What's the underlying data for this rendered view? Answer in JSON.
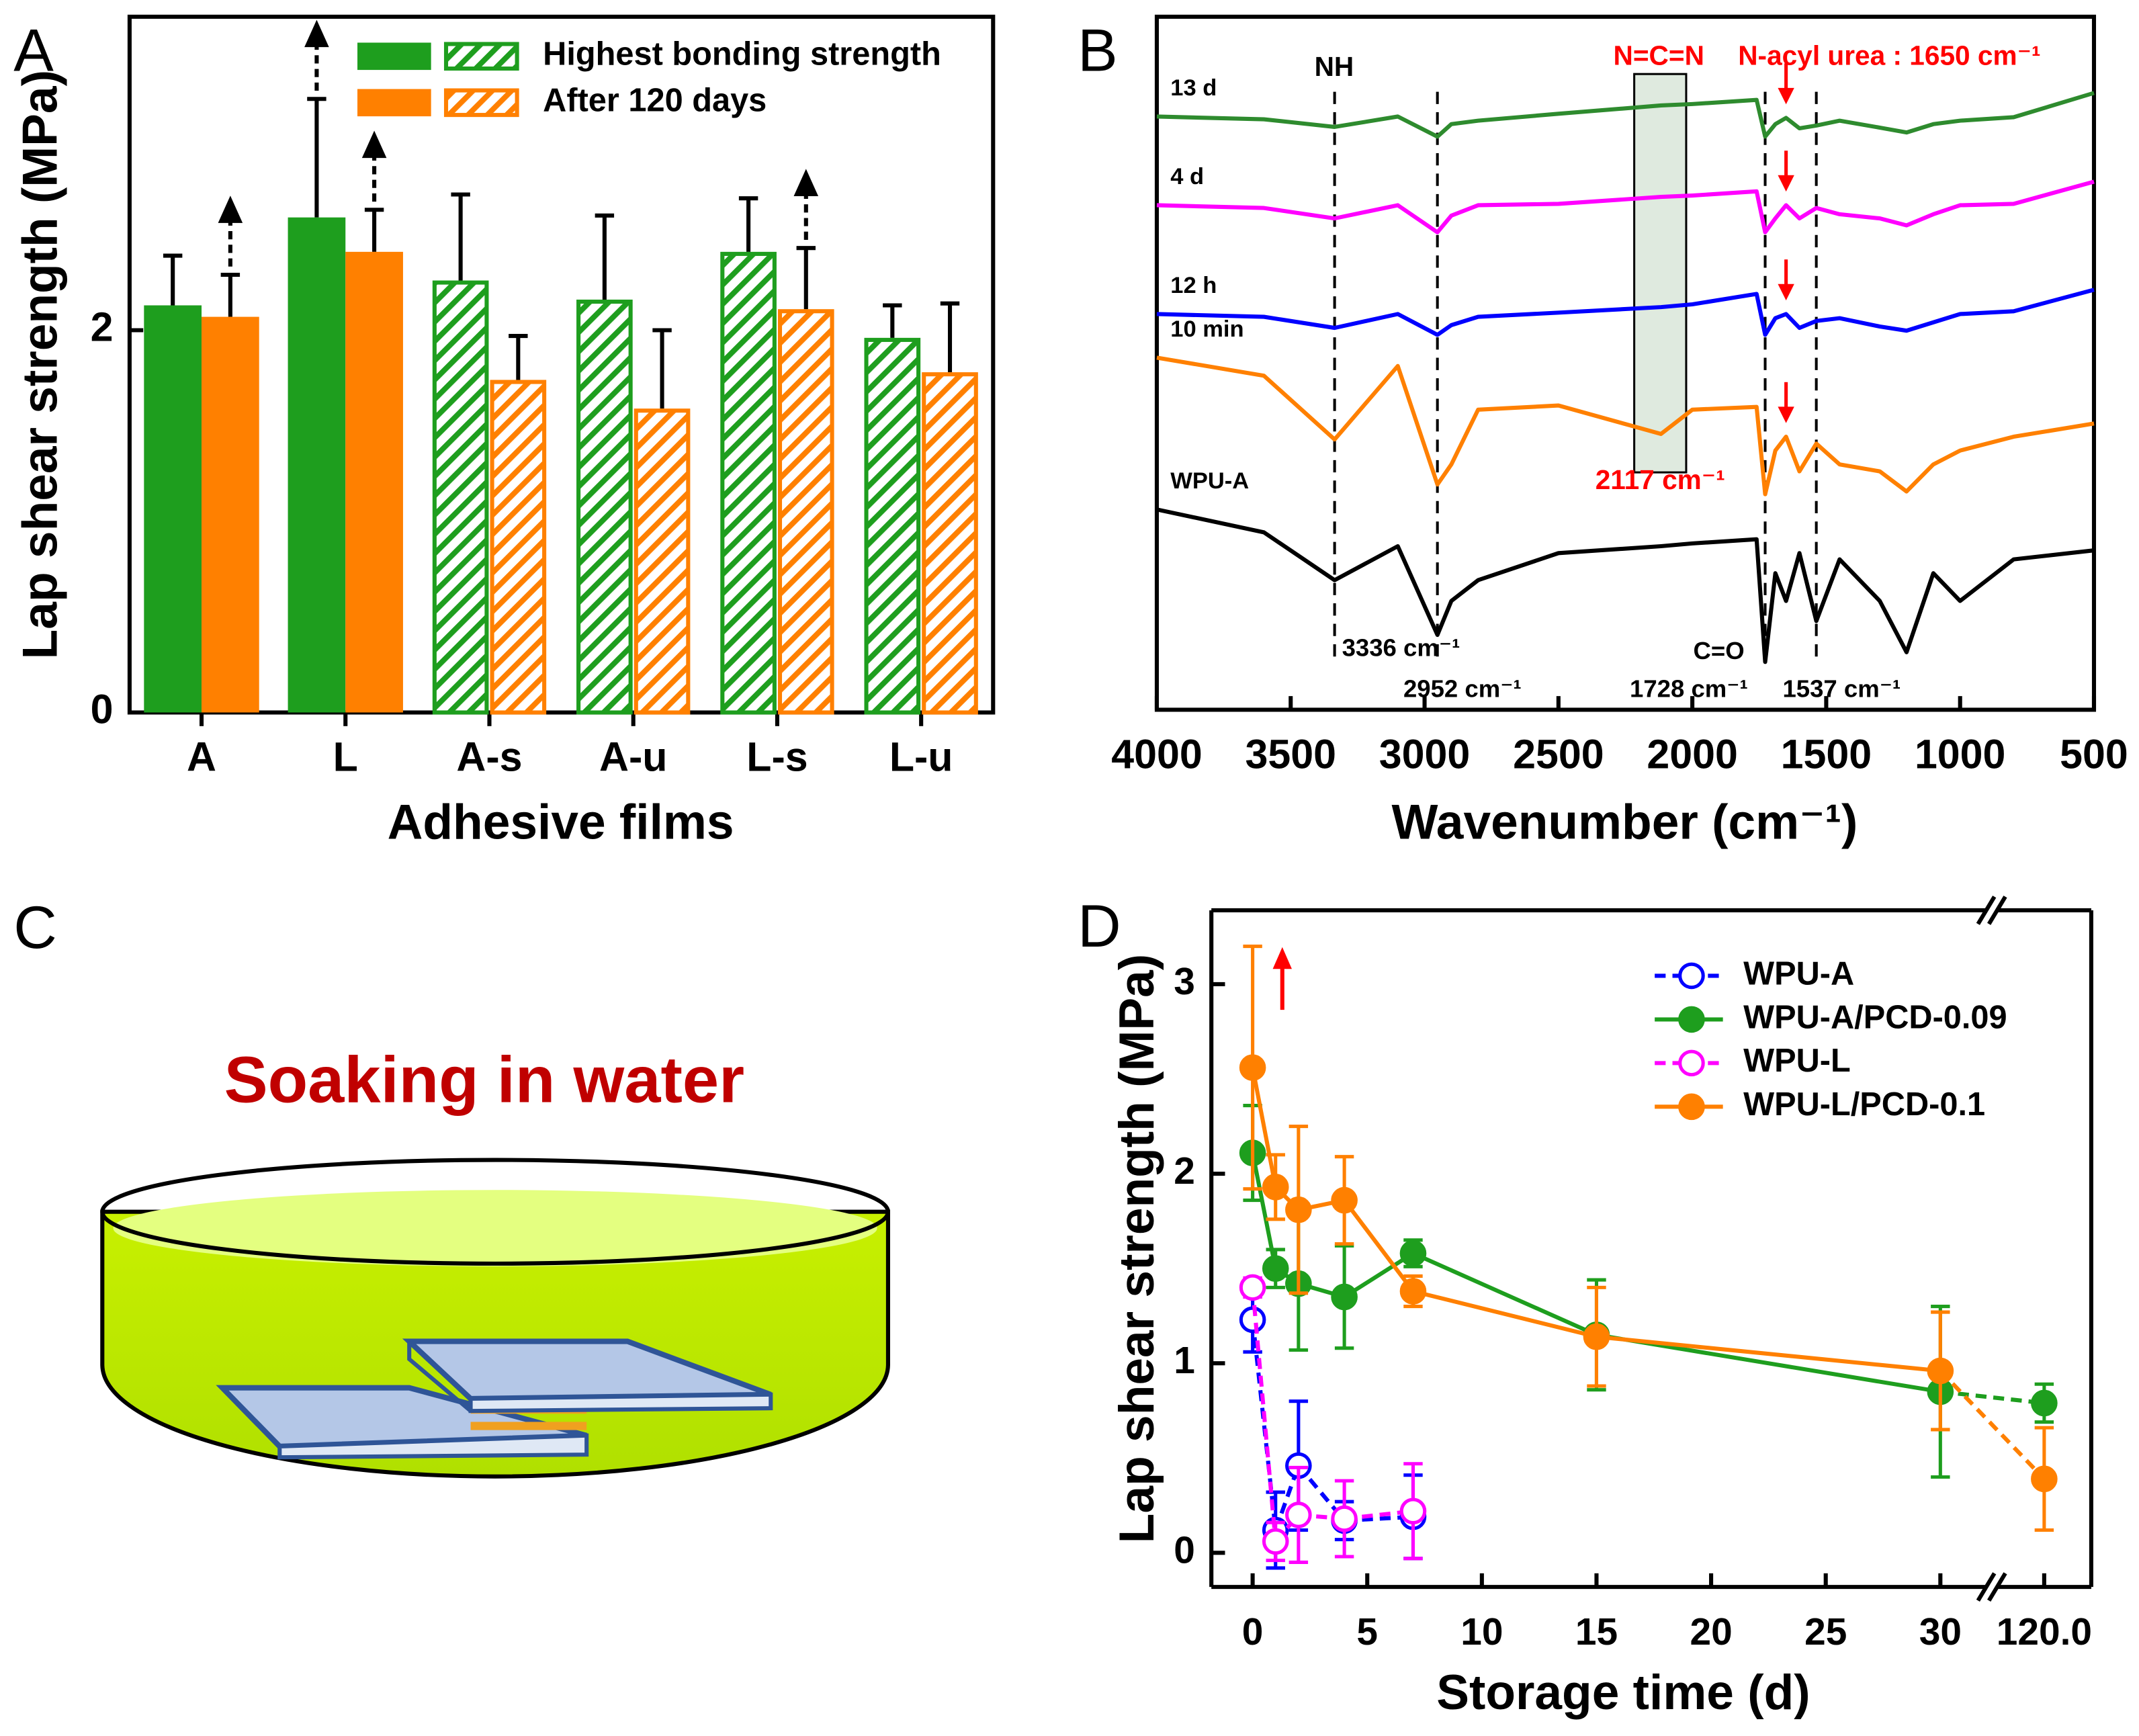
{
  "chart_data": [
    {
      "type": "bar",
      "panel": "A",
      "ylabel": "Lap shear strength (MPa)",
      "xlabel": "Adhesive films",
      "categories": [
        "A",
        "L",
        "A-s",
        "A-u",
        "L-s",
        "L-u"
      ],
      "hatched": [
        false,
        false,
        true,
        true,
        true,
        true
      ],
      "series": [
        {
          "name": "Highest bonding strength",
          "color": "#1e9e1e",
          "values": [
            2.13,
            2.59,
            2.26,
            2.16,
            2.41,
            1.96
          ],
          "errors": [
            0.26,
            0.62,
            0.45,
            0.44,
            0.28,
            0.17
          ],
          "arrows": [
            false,
            true,
            false,
            false,
            false,
            false
          ]
        },
        {
          "name": "After 120 days",
          "color": "#ff8000",
          "values": [
            2.07,
            2.41,
            1.74,
            1.59,
            2.11,
            1.78
          ],
          "errors": [
            0.22,
            0.22,
            0.23,
            0.41,
            0.32,
            0.36
          ],
          "arrows": [
            true,
            true,
            false,
            false,
            true,
            false
          ]
        }
      ],
      "ylim": [
        0,
        3.64
      ],
      "yticks": [
        0,
        2
      ],
      "legend": "upper right"
    },
    {
      "type": "line",
      "panel": "B",
      "xlabel": "Wavenumber (cm⁻¹)",
      "x": [
        4000,
        3600,
        3336,
        3100,
        2952,
        2900,
        2800,
        2500,
        2117,
        2000,
        1760,
        1728,
        1690,
        1650,
        1600,
        1537,
        1450,
        1300,
        1200,
        1100,
        1000,
        800,
        500
      ],
      "series": [
        {
          "name": "13 d",
          "color": "#2e8b2e",
          "arrow": true,
          "values": [
            85.6,
            85.2,
            84.1,
            85.6,
            82.7,
            84.5,
            85.0,
            86.0,
            87.2,
            87.4,
            88.0,
            82.7,
            84.5,
            85.4,
            83.9,
            84.3,
            85.0,
            84.0,
            83.3,
            84.5,
            85.0,
            85.5,
            89.0
          ]
        },
        {
          "name": "4 d",
          "color": "#ff00ff",
          "arrow": true,
          "values": [
            72.8,
            72.4,
            70.9,
            72.8,
            68.9,
            71.3,
            72.8,
            73.0,
            74.0,
            74.2,
            74.8,
            68.9,
            70.9,
            72.8,
            70.9,
            72.4,
            71.5,
            70.9,
            69.9,
            71.5,
            72.8,
            73.0,
            76.2
          ]
        },
        {
          "name": "12 h",
          "color": "#0000ff",
          "arrow": true,
          "values": [
            57.1,
            56.7,
            55.1,
            57.1,
            54.1,
            55.5,
            56.7,
            57.3,
            58.1,
            58.5,
            60.0,
            54.1,
            56.5,
            57.1,
            55.1,
            56.1,
            56.5,
            55.3,
            54.7,
            55.9,
            57.1,
            57.5,
            60.6
          ]
        },
        {
          "name": "10 min",
          "color": "#ff8000",
          "arrow": true,
          "values": [
            50.8,
            48.2,
            39.0,
            49.6,
            32.5,
            35.4,
            43.3,
            43.9,
            39.8,
            43.3,
            43.7,
            31.1,
            37.4,
            39.4,
            34.4,
            38.4,
            35.4,
            34.4,
            31.5,
            35.4,
            37.4,
            39.4,
            41.3
          ]
        },
        {
          "name": "WPU-A",
          "color": "#000000",
          "arrow": false,
          "values": [
            28.9,
            25.6,
            18.7,
            23.6,
            10.8,
            15.7,
            18.7,
            22.6,
            23.6,
            24.0,
            24.6,
            6.9,
            19.7,
            15.7,
            22.6,
            12.8,
            21.7,
            15.7,
            8.3,
            19.7,
            15.7,
            21.7,
            23.0
          ]
        }
      ],
      "xlim": [
        4000,
        500
      ],
      "xticks": [
        4000,
        3500,
        3000,
        2500,
        2000,
        1500,
        1000,
        500
      ],
      "ylim": [
        0,
        100
      ],
      "dashed_lines": [
        3336,
        2952,
        1728,
        1537
      ],
      "highlight": [
        2217,
        2023
      ],
      "arrow_at": 1650,
      "arrow_color": "#ff0000",
      "annotations": [
        {
          "text": "NH",
          "color": "#000000"
        },
        {
          "text": "N=C=N",
          "color": "#ff0000"
        },
        {
          "text": "N-acyl urea : 1650 cm⁻¹",
          "color": "#ff0000"
        },
        {
          "text": "2117 cm⁻¹",
          "color": "#ff0000"
        },
        {
          "text": "3336 cm⁻¹",
          "color": "#000000"
        },
        {
          "text": "2952 cm⁻¹",
          "color": "#000000"
        },
        {
          "text": "C=O",
          "color": "#000000"
        },
        {
          "text": "1728 cm⁻¹",
          "color": "#000000"
        },
        {
          "text": "1537 cm⁻¹",
          "color": "#000000"
        }
      ]
    },
    {
      "type": "line",
      "panel": "D",
      "ylabel": "Lap shear strength (MPa)",
      "xlabel": "Storage time (d)",
      "x": [
        0,
        1,
        2,
        4,
        7,
        15,
        30,
        120
      ],
      "series": [
        {
          "name": "WPU-A",
          "color": "#0000ff",
          "dashed": true,
          "filled": false,
          "values": [
            1.23,
            0.12,
            0.46,
            0.17,
            0.19,
            null,
            null,
            null
          ],
          "errors": [
            0.17,
            0.2,
            0.34,
            0.1,
            0.22,
            null,
            null,
            null
          ]
        },
        {
          "name": "WPU-A/PCD-0.09",
          "color": "#1e9e1e",
          "dashed": false,
          "filled": true,
          "values": [
            2.11,
            1.5,
            1.42,
            1.35,
            1.58,
            1.15,
            0.85,
            0.79
          ],
          "errors": [
            0.25,
            0.1,
            0.35,
            0.27,
            0.07,
            0.29,
            0.45,
            0.1
          ]
        },
        {
          "name": "WPU-L",
          "color": "#ff00ff",
          "dashed": true,
          "filled": false,
          "values": [
            1.4,
            0.06,
            0.2,
            0.18,
            0.22,
            null,
            null,
            null
          ],
          "errors": [
            0.05,
            0.1,
            0.25,
            0.2,
            0.25,
            null,
            null,
            null
          ]
        },
        {
          "name": "WPU-L/PCD-0.1",
          "color": "#ff8000",
          "dashed": false,
          "filled": true,
          "values": [
            2.56,
            1.93,
            1.81,
            1.86,
            1.38,
            1.14,
            0.96,
            0.39
          ],
          "errors": [
            0.64,
            0.17,
            0.44,
            0.23,
            0.08,
            0.26,
            0.31,
            0.27
          ]
        }
      ],
      "xlim": [
        -1.8,
        122
      ],
      "x_break": [
        32,
        118
      ],
      "xticks": [
        0,
        5,
        10,
        15,
        20,
        25,
        30,
        {
          "value": 120,
          "label": "120.0"
        }
      ],
      "ylim": [
        -0.18,
        3.39
      ],
      "yticks": [
        0,
        1,
        2,
        3
      ],
      "legend": "upper right"
    }
  ],
  "panel_c": {
    "label": "C",
    "title": "Soaking in water"
  }
}
